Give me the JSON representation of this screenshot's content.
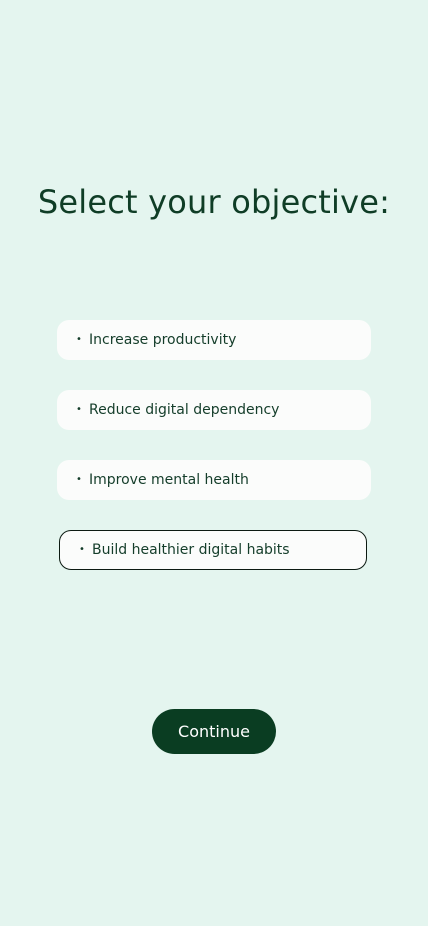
{
  "title": "Select your objective:",
  "options": [
    {
      "label": "Increase productivity",
      "selected": false
    },
    {
      "label": "Reduce digital dependency",
      "selected": false
    },
    {
      "label": "Improve mental health",
      "selected": false
    },
    {
      "label": "Build healthier digital habits",
      "selected": true
    }
  ],
  "bullet": "•",
  "continue_label": "Continue",
  "colors": {
    "background": "#e4f5ef",
    "primary": "#0a3d22",
    "option_bg": "#fbfcfb",
    "selected_border": "#0c1a12"
  }
}
